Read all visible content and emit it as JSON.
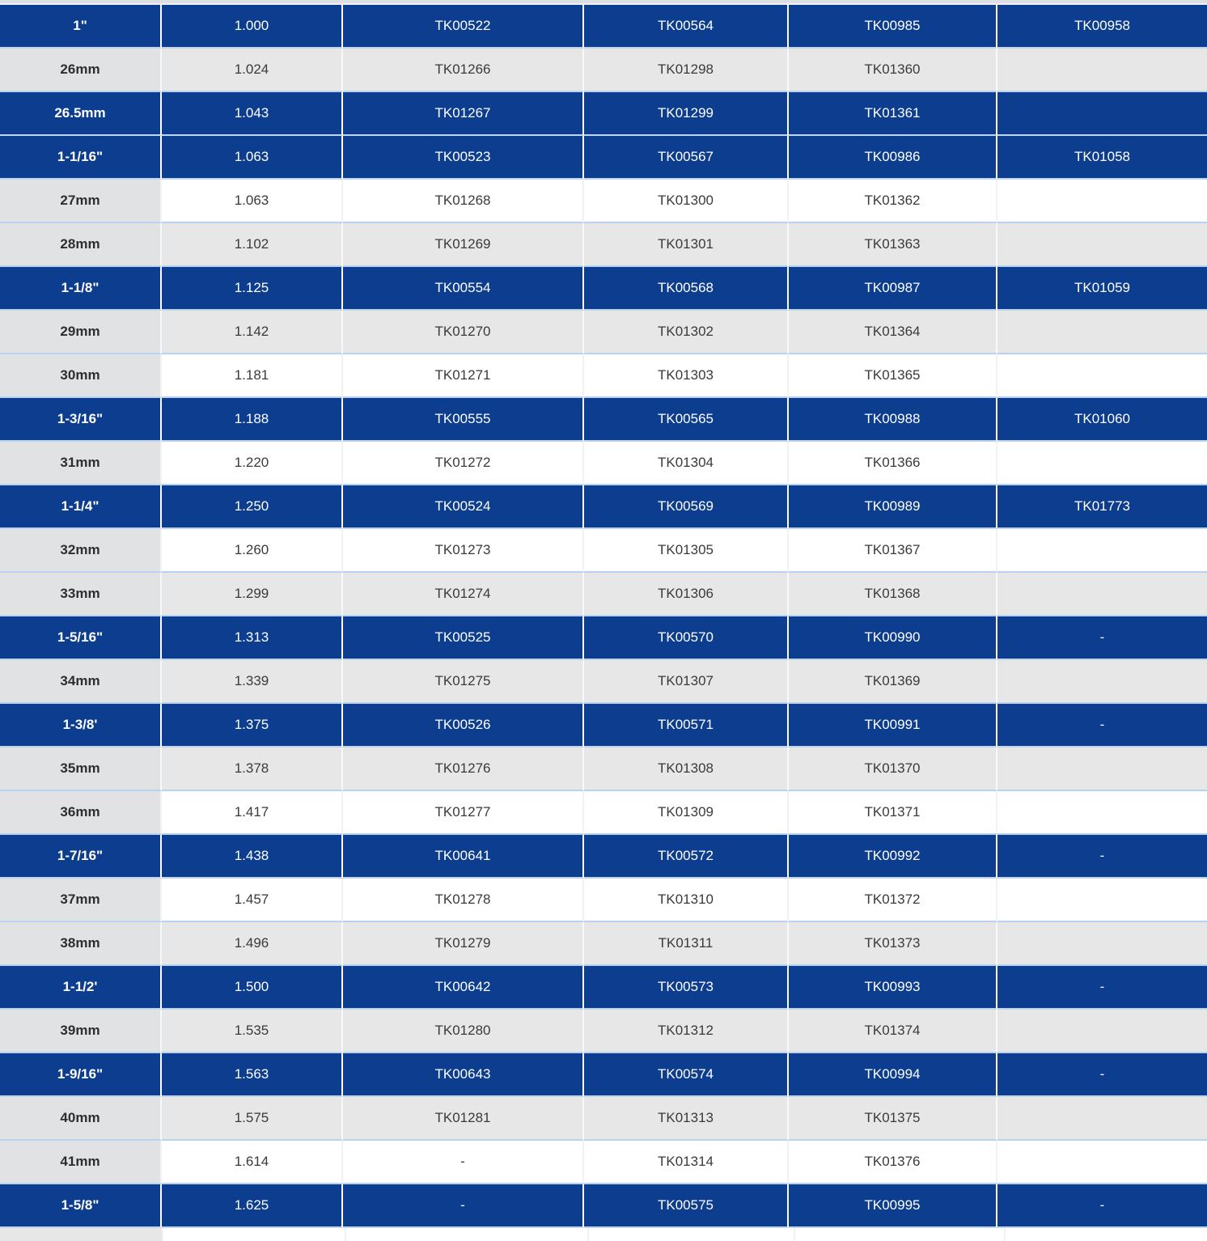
{
  "colors": {
    "row_highlight_blue": "#0d3d8f",
    "row_alt_gray": "#e7e7e8",
    "first_column_gray": "#e1e2e4",
    "row_divider_light_blue": "#b7d3f1",
    "text_dark": "#3a3a3a",
    "text_on_blue": "#ffffff"
  },
  "table": {
    "rows": [
      {
        "style": "blue",
        "cells": [
          "1\"",
          "1.000",
          "TK00522",
          "TK00564",
          "TK00985",
          "TK00958"
        ]
      },
      {
        "style": "gray",
        "cells": [
          "26mm",
          "1.024",
          "TK01266",
          "TK01298",
          "TK01360",
          ""
        ]
      },
      {
        "style": "blue",
        "cells": [
          "26.5mm",
          "1.043",
          "TK01267",
          "TK01299",
          "TK01361",
          ""
        ]
      },
      {
        "style": "blue",
        "cells": [
          "1-1/16\"",
          "1.063",
          "TK00523",
          "TK00567",
          "TK00986",
          "TK01058"
        ]
      },
      {
        "style": "white",
        "cells": [
          "27mm",
          "1.063",
          "TK01268",
          "TK01300",
          "TK01362",
          ""
        ]
      },
      {
        "style": "gray",
        "cells": [
          "28mm",
          "1.102",
          "TK01269",
          "TK01301",
          "TK01363",
          ""
        ]
      },
      {
        "style": "blue",
        "cells": [
          "1-1/8\"",
          "1.125",
          "TK00554",
          "TK00568",
          "TK00987",
          "TK01059"
        ]
      },
      {
        "style": "gray",
        "cells": [
          "29mm",
          "1.142",
          "TK01270",
          "TK01302",
          "TK01364",
          ""
        ]
      },
      {
        "style": "white",
        "cells": [
          "30mm",
          "1.181",
          "TK01271",
          "TK01303",
          "TK01365",
          ""
        ]
      },
      {
        "style": "blue",
        "cells": [
          "1-3/16\"",
          "1.188",
          "TK00555",
          "TK00565",
          "TK00988",
          "TK01060"
        ]
      },
      {
        "style": "white",
        "cells": [
          "31mm",
          "1.220",
          "TK01272",
          "TK01304",
          "TK01366",
          ""
        ]
      },
      {
        "style": "blue",
        "cells": [
          "1-1/4\"",
          "1.250",
          "TK00524",
          "TK00569",
          "TK00989",
          "TK01773"
        ]
      },
      {
        "style": "white",
        "cells": [
          "32mm",
          "1.260",
          "TK01273",
          "TK01305",
          "TK01367",
          ""
        ]
      },
      {
        "style": "gray",
        "cells": [
          "33mm",
          "1.299",
          "TK01274",
          "TK01306",
          "TK01368",
          ""
        ]
      },
      {
        "style": "blue",
        "cells": [
          "1-5/16\"",
          "1.313",
          "TK00525",
          "TK00570",
          "TK00990",
          "-"
        ]
      },
      {
        "style": "gray",
        "cells": [
          "34mm",
          "1.339",
          "TK01275",
          "TK01307",
          "TK01369",
          ""
        ]
      },
      {
        "style": "blue",
        "cells": [
          "1-3/8'",
          "1.375",
          "TK00526",
          "TK00571",
          "TK00991",
          "-"
        ]
      },
      {
        "style": "gray",
        "cells": [
          "35mm",
          "1.378",
          "TK01276",
          "TK01308",
          "TK01370",
          ""
        ]
      },
      {
        "style": "white",
        "cells": [
          "36mm",
          "1.417",
          "TK01277",
          "TK01309",
          "TK01371",
          ""
        ]
      },
      {
        "style": "blue",
        "cells": [
          "1-7/16\"",
          "1.438",
          "TK00641",
          "TK00572",
          "TK00992",
          "-"
        ]
      },
      {
        "style": "white",
        "cells": [
          "37mm",
          "1.457",
          "TK01278",
          "TK01310",
          "TK01372",
          ""
        ]
      },
      {
        "style": "gray",
        "cells": [
          "38mm",
          "1.496",
          "TK01279",
          "TK01311",
          "TK01373",
          ""
        ]
      },
      {
        "style": "blue",
        "cells": [
          "1-1/2'",
          "1.500",
          "TK00642",
          "TK00573",
          "TK00993",
          "-"
        ]
      },
      {
        "style": "gray",
        "cells": [
          "39mm",
          "1.535",
          "TK01280",
          "TK01312",
          "TK01374",
          ""
        ]
      },
      {
        "style": "blue",
        "cells": [
          "1-9/16\"",
          "1.563",
          "TK00643",
          "TK00574",
          "TK00994",
          "-"
        ]
      },
      {
        "style": "gray",
        "cells": [
          "40mm",
          "1.575",
          "TK01281",
          "TK01313",
          "TK01375",
          ""
        ]
      },
      {
        "style": "white",
        "cells": [
          "41mm",
          "1.614",
          "-",
          "TK01314",
          "TK01376",
          ""
        ]
      },
      {
        "style": "blue",
        "cells": [
          "1-5/8\"",
          "1.625",
          "-",
          "TK00575",
          "TK00995",
          "-"
        ]
      }
    ]
  }
}
